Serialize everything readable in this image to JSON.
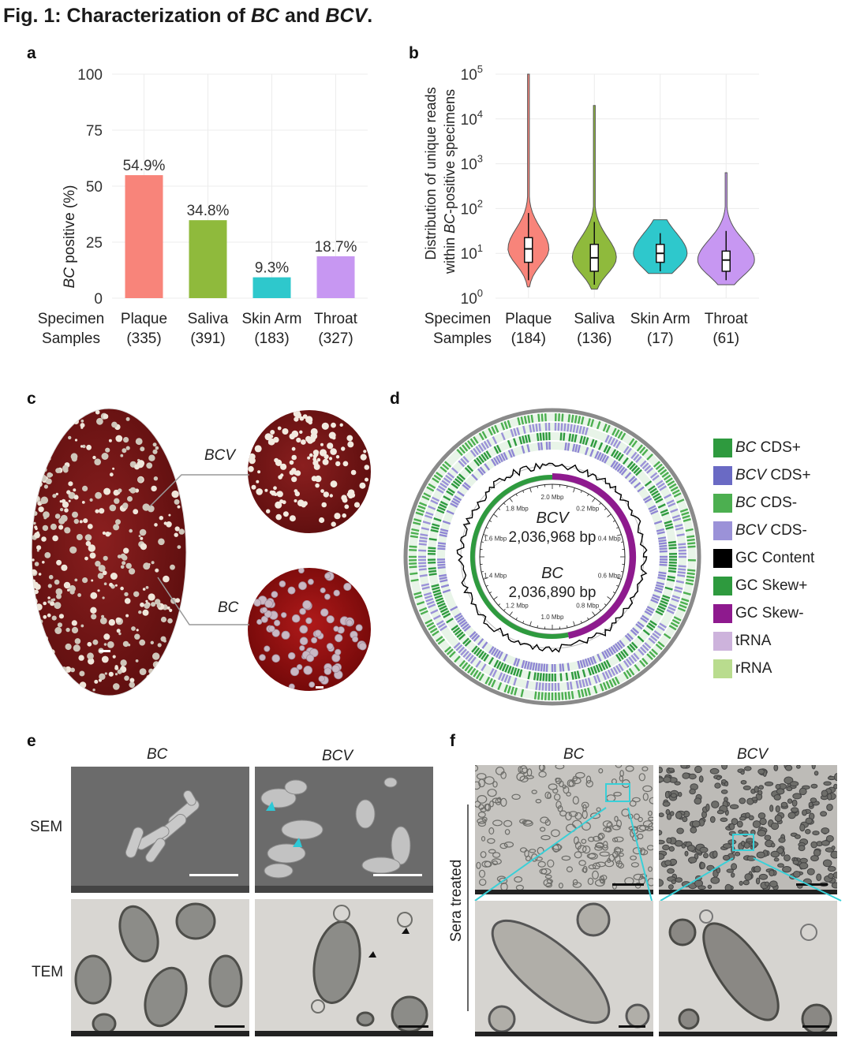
{
  "figure": {
    "title_prefix": "Fig. 1: Characterization of ",
    "title_bc": "BC",
    "title_mid": " and ",
    "title_bcv": "BCV",
    "title_suffix": "."
  },
  "panels": {
    "a": "a",
    "b": "b",
    "c": "c",
    "d": "d",
    "e": "e",
    "f": "f"
  },
  "chart_data": [
    {
      "panel": "a",
      "type": "bar",
      "ylabel_italic": "BC",
      "ylabel_rest": " positive (%)",
      "ylim": [
        0,
        100
      ],
      "yticks": [
        0,
        25,
        50,
        75,
        100
      ],
      "row_label_1": "Specimen",
      "row_label_2": "Samples",
      "categories": [
        "Plaque",
        "Saliva",
        "Skin Arm",
        "Throat"
      ],
      "counts": [
        "(335)",
        "(391)",
        "(183)",
        "(327)"
      ],
      "values": [
        54.9,
        34.8,
        9.3,
        18.7
      ],
      "data_labels": [
        "54.9%",
        "34.8%",
        "9.3%",
        "18.7%"
      ],
      "colors": [
        "#f8847a",
        "#8fba3c",
        "#2ec8cc",
        "#c797f2"
      ],
      "grid": true
    },
    {
      "panel": "b",
      "type": "violin",
      "ylabel_line1": "Distribution of unique reads",
      "ylabel_line2_pre": "within ",
      "ylabel_line2_italic": "BC",
      "ylabel_line2_post": "-positive specimens",
      "yscale": "log10",
      "ylim_exp": [
        0,
        5
      ],
      "ytick_base": "10",
      "yticks_exp": [
        "0",
        "1",
        "2",
        "3",
        "4",
        "5"
      ],
      "row_label_1": "Specimen",
      "row_label_2": "Samples",
      "categories": [
        "Plaque",
        "Saliva",
        "Skin Arm",
        "Throat"
      ],
      "counts": [
        "(184)",
        "(136)",
        "(17)",
        "(61)"
      ],
      "median_exp": [
        1.1,
        0.9,
        1.0,
        0.85
      ],
      "q1_exp": [
        0.8,
        0.6,
        0.8,
        0.6
      ],
      "q3_exp": [
        1.35,
        1.2,
        1.2,
        1.05
      ],
      "whisker_low_exp": [
        0.4,
        0.3,
        0.6,
        0.4
      ],
      "whisker_high_exp": [
        1.9,
        1.7,
        1.45,
        1.5
      ],
      "max_exp": [
        5.0,
        4.3,
        1.75,
        2.8
      ],
      "min_exp": [
        0.25,
        0.2,
        0.55,
        0.3
      ],
      "colors": [
        "#f8847a",
        "#8fba3c",
        "#2ec8cc",
        "#c797f2"
      ],
      "grid": true
    }
  ],
  "panel_c": {
    "label_bcv": "BCV",
    "label_bc": "BC"
  },
  "panel_d": {
    "center_bcv": "BCV",
    "size_bcv": "2,036,968 bp",
    "center_bc": "BC",
    "size_bc": "2,036,890 bp",
    "ring_ticks": [
      "2.0 Mbp",
      "0.2 Mbp",
      "0.4 Mbp",
      "0.6 Mbp",
      "0.8 Mbp",
      "1.0 Mbp",
      "1.2 Mbp",
      "1.4 Mbp",
      "1.6 Mbp",
      "1.8 Mbp"
    ],
    "legend": [
      {
        "italic": "BC",
        "text": " CDS+",
        "color": "#2e9a3e"
      },
      {
        "italic": "BCV",
        "text": " CDS+",
        "color": "#6a6ac4"
      },
      {
        "italic": "BC",
        "text": " CDS-",
        "color": "#4caf50"
      },
      {
        "italic": "BCV",
        "text": " CDS-",
        "color": "#9b92d8"
      },
      {
        "italic": "",
        "text": "GC Content",
        "color": "#000000"
      },
      {
        "italic": "",
        "text": "GC Skew+",
        "color": "#2e9a3e"
      },
      {
        "italic": "",
        "text": "GC Skew-",
        "color": "#8e1a8e"
      },
      {
        "italic": "",
        "text": "tRNA",
        "color": "#cdb3dc"
      },
      {
        "italic": "",
        "text": "rRNA",
        "color": "#b9dc8e"
      }
    ]
  },
  "panel_e": {
    "col_bc": "BC",
    "col_bcv": "BCV",
    "row_sem": "SEM",
    "row_tem": "TEM"
  },
  "panel_f": {
    "col_bc": "BC",
    "col_bcv": "BCV",
    "row_label": "Sera treated"
  }
}
